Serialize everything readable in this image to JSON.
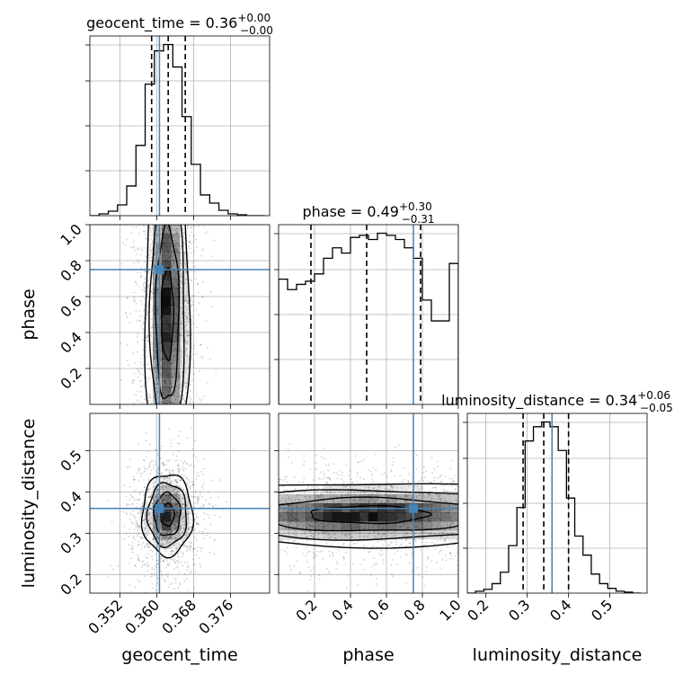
{
  "chart_data": {
    "type": "corner",
    "parameters": [
      "geocent_time",
      "phase",
      "luminosity_distance"
    ],
    "truths": {
      "geocent_time": 0.3606,
      "phase": 0.75,
      "luminosity_distance": 0.36
    },
    "ranges": {
      "geocent_time": [
        0.3455,
        0.3845
      ],
      "phase": [
        0.0,
        1.0
      ],
      "luminosity_distance": [
        0.155,
        0.59
      ]
    },
    "ticks": {
      "geocent_time": {
        "values": [
          0.352,
          0.36,
          0.368,
          0.376
        ],
        "labels": [
          "0.352",
          "0.360",
          "0.368",
          "0.376"
        ]
      },
      "phase": {
        "values": [
          0.2,
          0.4,
          0.6,
          0.8,
          1.0
        ],
        "labels": [
          "0.2",
          "0.4",
          "0.6",
          "0.8",
          "1.0"
        ]
      },
      "luminosity_distance": {
        "values": [
          0.2,
          0.3,
          0.4,
          0.5
        ],
        "labels": [
          "0.2",
          "0.3",
          "0.4",
          "0.5"
        ]
      }
    },
    "diagonal": [
      {
        "param": "geocent_time",
        "title": {
          "label": "geocent_time = 0.36",
          "sup": "+0.00",
          "sub": "−0.00"
        },
        "quantiles": [
          0.3589,
          0.3625,
          0.3662
        ],
        "bins": [
          0.3455,
          0.3475,
          0.3495,
          0.3515,
          0.3535,
          0.3555,
          0.3575,
          0.3595,
          0.3615,
          0.3635,
          0.3655,
          0.3675,
          0.3695,
          0.3715,
          0.3735,
          0.3755,
          0.3775,
          0.3795,
          0.3815,
          0.3835
        ],
        "counts": [
          0,
          2,
          5,
          12,
          33,
          78,
          146,
          183,
          190,
          165,
          110,
          57,
          23,
          14,
          6,
          2,
          1,
          0,
          0
        ]
      },
      {
        "param": "phase",
        "title": {
          "label": "phase = 0.49",
          "sup": "+0.30",
          "sub": "−0.31"
        },
        "quantiles": [
          0.18,
          0.49,
          0.79
        ],
        "bins": [
          0.0,
          0.05,
          0.1,
          0.15,
          0.2,
          0.25,
          0.3,
          0.35,
          0.4,
          0.45,
          0.5,
          0.55,
          0.6,
          0.65,
          0.7,
          0.75,
          0.8,
          0.85,
          0.9,
          0.95,
          1.0
        ],
        "counts": [
          120,
          110,
          115,
          118,
          125,
          140,
          150,
          145,
          160,
          162,
          158,
          164,
          162,
          158,
          150,
          140,
          100,
          80,
          80,
          135
        ]
      },
      {
        "param": "luminosity_distance",
        "title": {
          "label": "luminosity_distance = 0.34",
          "sup": "+0.06",
          "sub": "−0.05"
        },
        "quantiles": [
          0.29,
          0.34,
          0.4
        ],
        "bins": [
          0.155,
          0.175,
          0.195,
          0.215,
          0.235,
          0.255,
          0.275,
          0.295,
          0.315,
          0.335,
          0.355,
          0.375,
          0.395,
          0.415,
          0.435,
          0.455,
          0.475,
          0.495,
          0.515,
          0.535,
          0.555,
          0.575
        ],
        "counts": [
          0,
          2,
          4,
          10,
          22,
          50,
          90,
          160,
          175,
          180,
          175,
          150,
          100,
          60,
          40,
          20,
          10,
          5,
          2,
          1,
          0
        ]
      }
    ],
    "off_diagonal": [
      {
        "x": "geocent_time",
        "y": "phase",
        "xcenter": 0.3623,
        "ycenter": 0.5,
        "xsigma": 0.0022,
        "ysigma": 0.29
      },
      {
        "x": "geocent_time",
        "y": "luminosity_distance",
        "xcenter": 0.3623,
        "ycenter": 0.345,
        "xsigma": 0.0025,
        "ysigma": 0.045
      },
      {
        "x": "phase",
        "y": "luminosity_distance",
        "xcenter": 0.5,
        "ycenter": 0.345,
        "xsigma": 0.29,
        "ysigma": 0.035
      }
    ]
  }
}
